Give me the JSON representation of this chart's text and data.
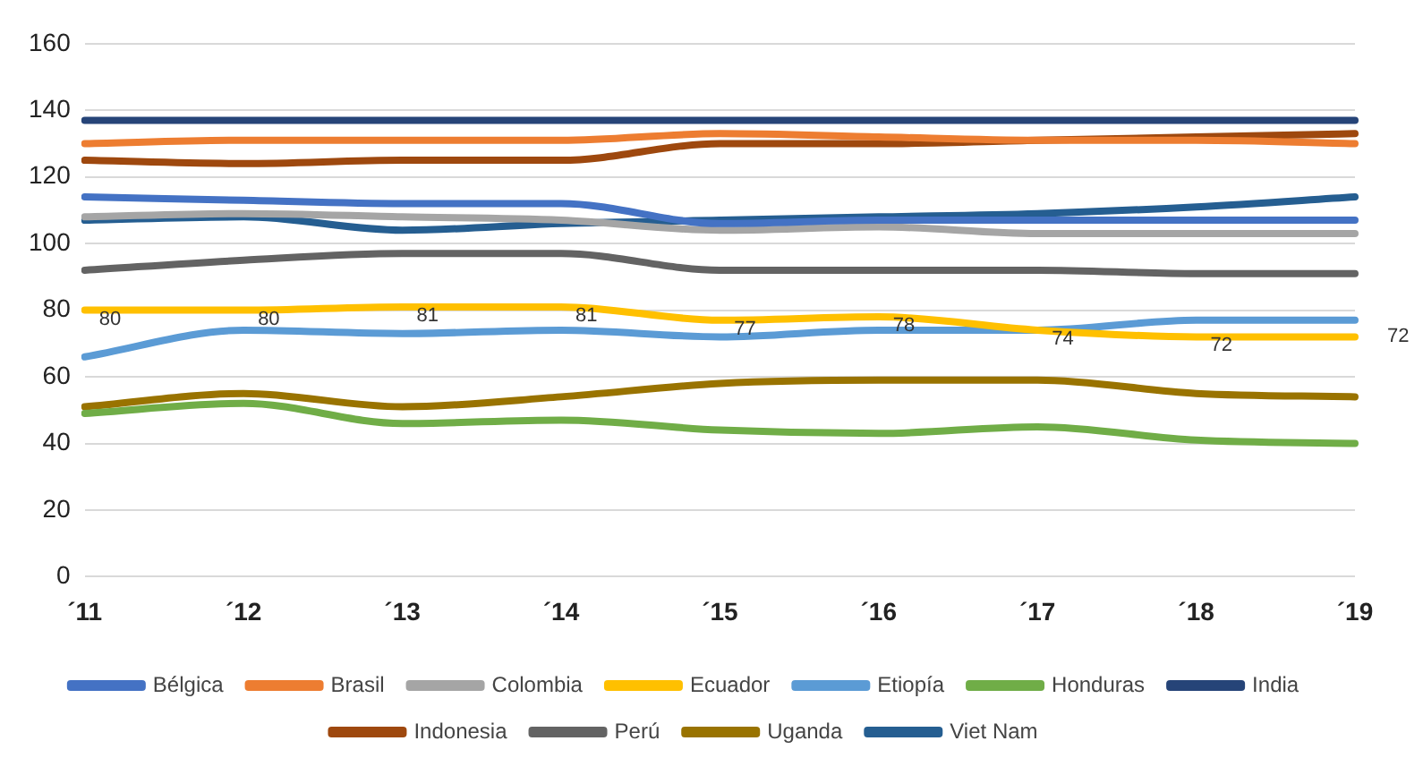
{
  "chart_data": {
    "type": "line",
    "categories": [
      "´11",
      "´12",
      "´13",
      "´14",
      "´15",
      "´16",
      "´17",
      "´18",
      "´19"
    ],
    "series": [
      {
        "name": "Bélgica",
        "color": "#4472c4",
        "values": [
          114,
          113,
          112,
          112,
          106,
          107,
          107,
          107,
          107
        ]
      },
      {
        "name": "Brasil",
        "color": "#ed7d31",
        "values": [
          130,
          131,
          131,
          131,
          133,
          132,
          131,
          131,
          130
        ]
      },
      {
        "name": "Colombia",
        "color": "#a5a5a5",
        "values": [
          108,
          109,
          108,
          107,
          104,
          105,
          103,
          103,
          103
        ]
      },
      {
        "name": "Ecuador",
        "color": "#ffc000",
        "values": [
          80,
          80,
          81,
          81,
          77,
          78,
          74,
          72,
          72
        ],
        "value_labels": [
          "80",
          "80",
          "81",
          "81",
          "77",
          "78",
          "74",
          "72",
          "72"
        ]
      },
      {
        "name": "Etiopía",
        "color": "#5b9bd5",
        "values": [
          66,
          74,
          73,
          74,
          72,
          74,
          74,
          77,
          77
        ]
      },
      {
        "name": "Honduras",
        "color": "#70ad47",
        "values": [
          49,
          52,
          46,
          47,
          44,
          43,
          45,
          41,
          40
        ]
      },
      {
        "name": "India",
        "color": "#264478",
        "values": [
          137,
          137,
          137,
          137,
          137,
          137,
          137,
          137,
          137
        ]
      },
      {
        "name": "Indonesia",
        "color": "#9e480e",
        "values": [
          125,
          124,
          125,
          125,
          130,
          130,
          131,
          132,
          133
        ]
      },
      {
        "name": "Perú",
        "color": "#636363",
        "values": [
          92,
          95,
          97,
          97,
          92,
          92,
          92,
          91,
          91
        ]
      },
      {
        "name": "Uganda",
        "color": "#997300",
        "values": [
          51,
          55,
          51,
          54,
          58,
          59,
          59,
          55,
          54
        ]
      },
      {
        "name": "Viet Nam",
        "color": "#255e91",
        "values": [
          107,
          108,
          104,
          106,
          107,
          108,
          109,
          111,
          114
        ]
      }
    ],
    "ylim": [
      0,
      160
    ],
    "yticks": [
      0,
      20,
      40,
      60,
      80,
      100,
      120,
      140,
      160
    ],
    "grid": "y",
    "legend": "bottom",
    "marker": "none",
    "line_style": "solid"
  }
}
